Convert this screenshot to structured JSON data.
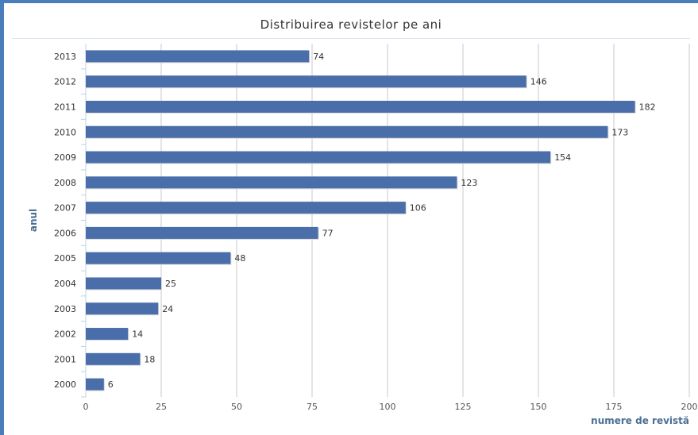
{
  "chart_data": {
    "type": "bar",
    "orientation": "horizontal",
    "title": "Distribuirea revistelor pe ani",
    "xlabel": "numere de revistă",
    "ylabel": "anul",
    "categories": [
      "2013",
      "2012",
      "2011",
      "2010",
      "2009",
      "2008",
      "2007",
      "2006",
      "2005",
      "2004",
      "2003",
      "2002",
      "2001",
      "2000"
    ],
    "values": [
      74,
      146,
      182,
      173,
      154,
      123,
      106,
      77,
      48,
      25,
      24,
      14,
      18,
      6
    ],
    "xlim": [
      0,
      200
    ],
    "xticks": [
      0,
      25,
      50,
      75,
      100,
      125,
      150,
      175,
      200
    ],
    "grid": true,
    "colors": {
      "bar": "#4a6ea9",
      "frame": "#4a7ebb",
      "grid": "#c8c8c8",
      "axis_label": "#4a6f94"
    }
  }
}
